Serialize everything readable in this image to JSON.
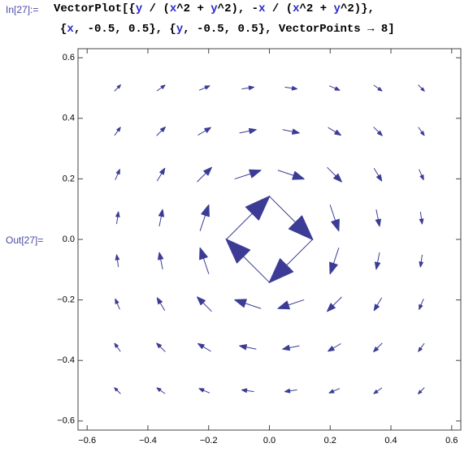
{
  "notebook": {
    "input_label": "In[27]:=",
    "input": [
      [
        "VectorPlot[{",
        "y",
        " / (",
        "x",
        "^2 + ",
        "y",
        "^2), -",
        "x",
        " / (",
        "x",
        "^2 + ",
        "y",
        "^2)},"
      ],
      [
        "{",
        "x",
        ", -0.5, 0.5}, {",
        "y",
        ", -0.5, 0.5}, VectorPoints → 8]"
      ]
    ],
    "output_label": "Out[27]="
  },
  "chart_data": {
    "type": "vector",
    "color": "#3c3c96",
    "x": [
      -0.5,
      -0.357,
      -0.214,
      -0.071,
      0.071,
      0.214,
      0.357,
      0.5
    ],
    "y": [
      -0.5,
      -0.357,
      -0.214,
      -0.071,
      0.071,
      0.214,
      0.357,
      0.5
    ],
    "u": [
      [
        -1,
        -1.324,
        -1.69,
        -1.96,
        -1.96,
        -1.69,
        -1.324,
        -1
      ],
      [
        -0.946,
        -1.4,
        -2.059,
        -2.692,
        -2.692,
        -2.059,
        -1.4,
        -0.946
      ],
      [
        -0.724,
        -1.235,
        -2.333,
        -4.2,
        -4.2,
        -2.333,
        -1.235,
        -0.724
      ],
      [
        -0.28,
        -0.538,
        -1.4,
        -7,
        -7,
        -1.4,
        -0.538,
        -0.28
      ],
      [
        0.28,
        0.538,
        1.4,
        7,
        7,
        1.4,
        0.538,
        0.28
      ],
      [
        0.724,
        1.235,
        2.333,
        4.2,
        4.2,
        2.333,
        1.235,
        0.724
      ],
      [
        0.946,
        1.4,
        2.059,
        2.692,
        2.692,
        2.059,
        1.4,
        0.946
      ],
      [
        1,
        1.324,
        1.69,
        1.96,
        1.96,
        1.69,
        1.324,
        1
      ]
    ],
    "v": [
      [
        1,
        0.946,
        0.724,
        0.28,
        -0.28,
        -0.724,
        -0.946,
        -1
      ],
      [
        1.324,
        1.4,
        1.235,
        0.538,
        -0.538,
        -1.235,
        -1.4,
        -1.324
      ],
      [
        1.69,
        2.059,
        2.333,
        1.4,
        -1.4,
        -2.333,
        -2.059,
        -1.69
      ],
      [
        1.96,
        2.692,
        4.2,
        7,
        -7,
        -4.2,
        -2.692,
        -1.96
      ],
      [
        1.96,
        2.692,
        4.2,
        7,
        -7,
        -4.2,
        -2.692,
        -1.96
      ],
      [
        1.69,
        2.059,
        2.333,
        1.4,
        -1.4,
        -2.333,
        -2.059,
        -1.69
      ],
      [
        1.324,
        1.4,
        1.235,
        0.538,
        -0.538,
        -1.235,
        -1.4,
        -1.324
      ],
      [
        1,
        0.946,
        0.724,
        0.28,
        -0.28,
        -0.724,
        -0.946,
        -1
      ]
    ],
    "xlim": [
      -0.63,
      0.63
    ],
    "ylim": [
      -0.63,
      0.63
    ],
    "xticks": [
      {
        "value": -0.6,
        "label": "−0.6"
      },
      {
        "value": -0.4,
        "label": "−0.4"
      },
      {
        "value": -0.2,
        "label": "−0.2"
      },
      {
        "value": 0,
        "label": "0.0"
      },
      0.2,
      0.4,
      0.6
    ],
    "yticks": [
      {
        "value": -0.6,
        "label": "−0.6"
      },
      {
        "value": -0.4,
        "label": "−0.4"
      },
      {
        "value": -0.2,
        "label": "−0.2"
      },
      {
        "value": 0,
        "label": "0.0"
      },
      0.2,
      0.4,
      0.6
    ]
  }
}
